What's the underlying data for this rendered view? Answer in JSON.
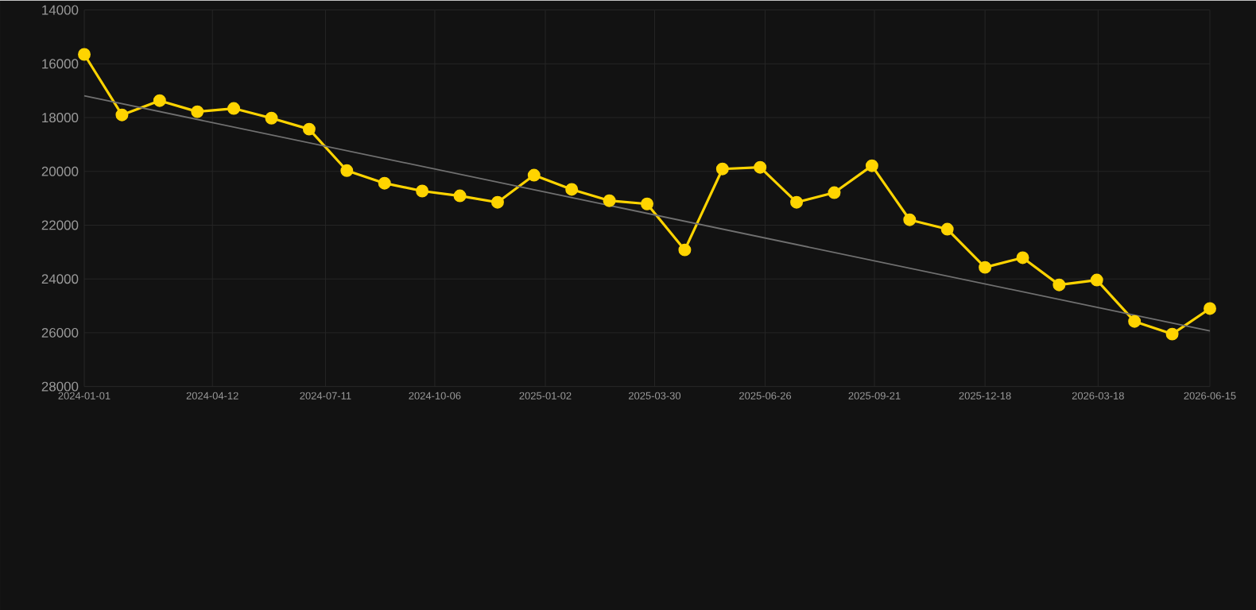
{
  "chart_data": {
    "type": "line",
    "x": [
      "2024-01-01",
      "2024-01-31",
      "2024-03-01",
      "2024-03-31",
      "2024-04-29",
      "2024-05-29",
      "2024-06-28",
      "2024-07-28",
      "2024-08-27",
      "2024-09-26",
      "2024-10-26",
      "2024-11-25",
      "2024-12-24",
      "2025-01-23",
      "2025-02-22",
      "2025-03-24",
      "2025-04-23",
      "2025-05-23",
      "2025-06-22",
      "2025-07-21",
      "2025-08-20",
      "2025-09-19",
      "2025-10-19",
      "2025-11-18",
      "2025-12-18",
      "2026-01-17",
      "2026-02-15",
      "2026-03-17",
      "2026-04-16",
      "2026-05-16",
      "2026-06-15"
    ],
    "series": [
      {
        "color": "#ffd400",
        "marker": "circle",
        "values": [
          15650,
          17900,
          17370,
          17780,
          17660,
          18020,
          18430,
          19970,
          20440,
          20730,
          20910,
          21150,
          20140,
          20670,
          21090,
          21210,
          22920,
          19910,
          19850,
          21150,
          20790,
          19790,
          21800,
          22150,
          23570,
          23210,
          24220,
          24040,
          25580,
          26050,
          25100
        ]
      },
      {
        "type": "line",
        "color": "#707070",
        "marker": "none",
        "x": [
          "2024-01-01",
          "2026-06-15"
        ],
        "values": [
          17190,
          25930
        ]
      }
    ],
    "xlim": [
      "2024-01-01",
      "2026-06-15"
    ],
    "xticks": [
      "2024-01-01",
      "2024-04-12",
      "2024-07-11",
      "2024-10-06",
      "2025-01-02",
      "2025-03-30",
      "2025-06-26",
      "2025-09-21",
      "2025-12-18",
      "2026-03-18",
      "2026-06-15"
    ],
    "ylim": [
      28000,
      14000
    ],
    "yticks": [
      14000,
      16000,
      18000,
      20000,
      22000,
      24000,
      26000,
      28000
    ],
    "grid": true
  }
}
